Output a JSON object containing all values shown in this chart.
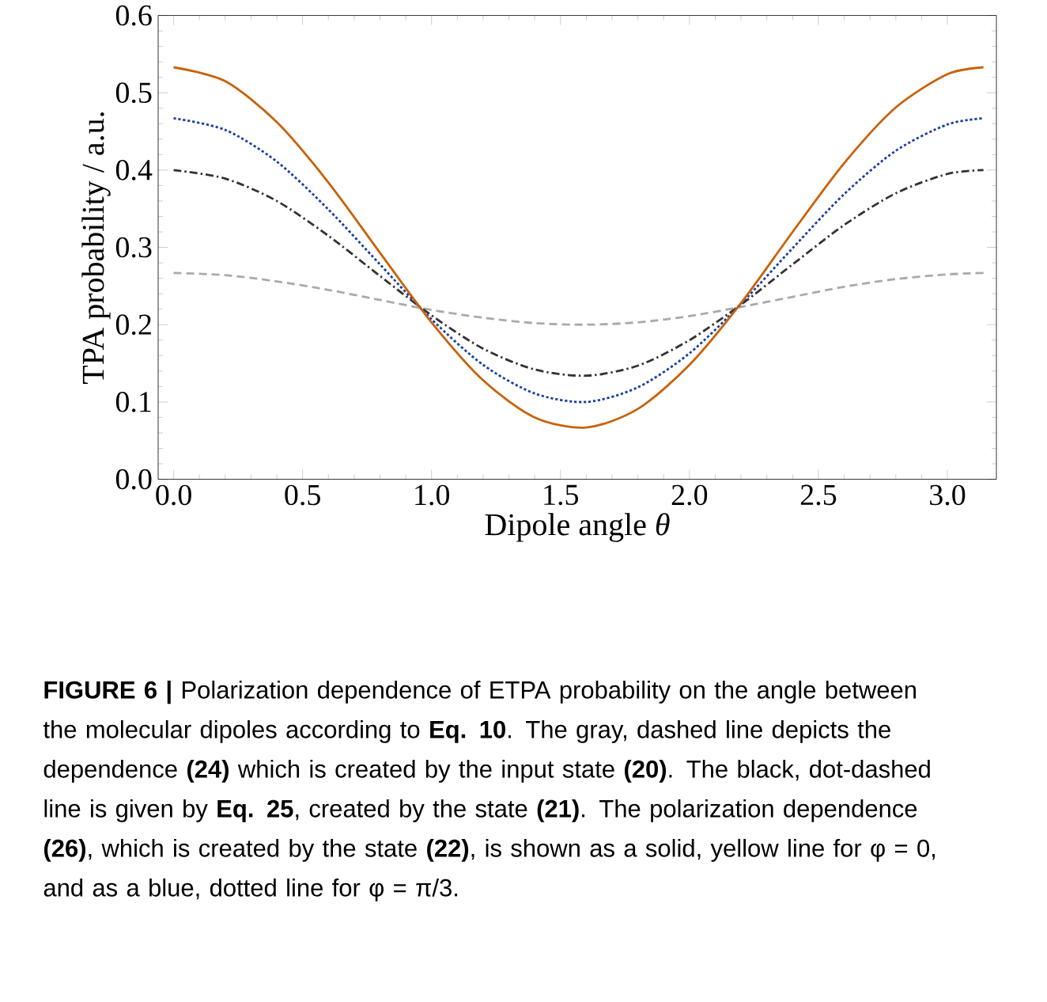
{
  "chart_data": {
    "type": "line",
    "xlabel": "Dipole angle *θ*",
    "ylabel": "TPA probability / a.u.",
    "x": [
      0,
      0.2,
      0.4,
      0.6,
      0.8,
      1.0,
      1.2,
      1.4,
      1.6,
      1.8,
      2.0,
      2.2,
      2.4,
      2.6,
      2.8,
      3.0,
      3.14
    ],
    "xlim": [
      -0.06,
      3.19
    ],
    "ylim": [
      0,
      0.6
    ],
    "xticks": [
      {
        "value": 0,
        "label": "0.0"
      },
      0.5,
      {
        "value": 1,
        "label": "1.0"
      },
      1.5,
      {
        "value": 2,
        "label": "2.0"
      },
      2.5,
      {
        "value": 3,
        "label": "3.0"
      }
    ],
    "yticks": [
      {
        "value": 0,
        "label": "0.0"
      },
      0.1,
      0.2,
      0.3,
      0.4,
      0.5,
      0.6
    ],
    "series": [
      {
        "color": "#aaaaaa",
        "line_style": "dashed",
        "values": [
          0.267,
          0.264,
          0.256,
          0.245,
          0.232,
          0.219,
          0.209,
          0.202,
          0.2,
          0.203,
          0.211,
          0.223,
          0.236,
          0.249,
          0.259,
          0.265,
          0.267
        ]
      },
      {
        "color": "#333333",
        "line_style": "dashdot",
        "values": [
          0.4,
          0.389,
          0.36,
          0.315,
          0.263,
          0.212,
          0.169,
          0.142,
          0.134,
          0.147,
          0.18,
          0.226,
          0.278,
          0.329,
          0.37,
          0.395,
          0.4
        ]
      },
      {
        "color": "#1a3fa0",
        "line_style": "dotted",
        "values": [
          0.467,
          0.452,
          0.411,
          0.349,
          0.278,
          0.207,
          0.148,
          0.111,
          0.1,
          0.119,
          0.163,
          0.227,
          0.299,
          0.369,
          0.425,
          0.459,
          0.467
        ]
      },
      {
        "color": "#c8620a",
        "line_style": "solid",
        "values": [
          0.533,
          0.515,
          0.462,
          0.384,
          0.293,
          0.203,
          0.128,
          0.08,
          0.067,
          0.091,
          0.148,
          0.228,
          0.32,
          0.409,
          0.481,
          0.524,
          0.533
        ]
      }
    ],
    "annotations": [
      "**FIGURE 6 |** Polarization dependence of ETPA probability on the angle between the molecular dipoles according to **Eq. 10**. The gray, dashed line depicts the dependence **(24)** which is created by the input state **(20)**. The black, dot-dashed line is given by **Eq. 25**, created by the state **(21)**. The polarization dependence **(26)**, which is created by the state **(22)**, is shown as a solid, yellow line for φ = 0, and as a blue, dotted line for φ = π/3."
    ]
  }
}
